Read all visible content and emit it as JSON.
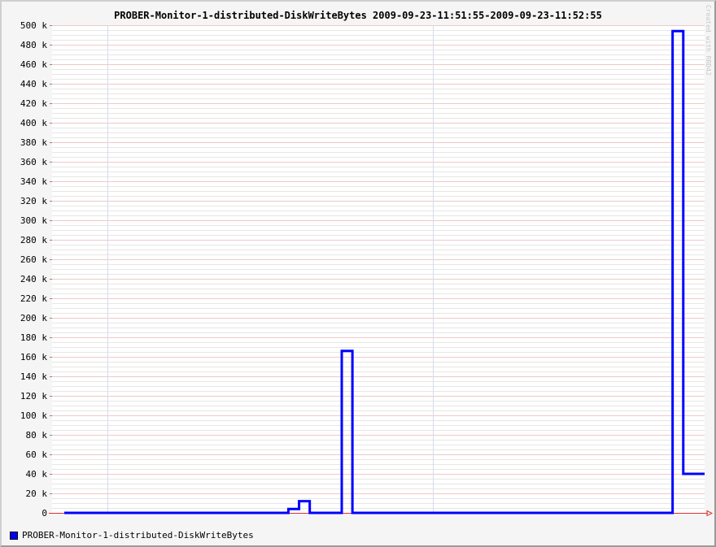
{
  "chart_data": {
    "type": "line",
    "title": "PROBER-Monitor-1-distributed-DiskWriteBytes 2009-09-23-11:51:55-2009-09-23-11:52:55",
    "xlabel": "",
    "ylabel": "",
    "watermark": "Created with RRD4J",
    "ylim": [
      0,
      500000
    ],
    "y_major_step": 20000,
    "y_minor_step": 5000,
    "yticks": [
      "0",
      "20 k",
      "40 k",
      "60 k",
      "80 k",
      "100 k",
      "120 k",
      "140 k",
      "160 k",
      "180 k",
      "200 k",
      "220 k",
      "240 k",
      "260 k",
      "280 k",
      "300 k",
      "320 k",
      "340 k",
      "360 k",
      "380 k",
      "400 k",
      "420 k",
      "440 k",
      "460 k",
      "480 k",
      "500 k"
    ],
    "step": true,
    "series": [
      {
        "name": "PROBER-Monitor-1-distributed-DiskWriteBytes",
        "color": "#0000ff",
        "x": [
          1,
          2,
          3,
          4,
          5,
          6,
          7,
          8,
          9,
          10,
          11,
          12,
          13,
          14,
          15,
          16,
          17,
          18,
          19,
          20,
          21,
          22,
          23,
          24,
          25,
          26,
          27,
          28,
          29,
          30,
          31,
          32,
          33,
          34,
          35,
          36,
          37,
          38,
          39,
          40,
          41,
          42,
          43,
          44,
          45,
          46,
          47,
          48,
          49,
          50,
          51,
          52,
          53,
          54,
          55,
          56,
          57,
          58,
          59,
          60
        ],
        "values": [
          0,
          0,
          0,
          0,
          0,
          0,
          0,
          0,
          0,
          0,
          0,
          0,
          0,
          0,
          0,
          0,
          0,
          0,
          0,
          0,
          0,
          4000,
          12000,
          0,
          0,
          0,
          166000,
          0,
          0,
          0,
          0,
          0,
          0,
          0,
          0,
          0,
          0,
          0,
          0,
          0,
          0,
          0,
          0,
          0,
          0,
          0,
          0,
          0,
          0,
          0,
          0,
          0,
          0,
          0,
          0,
          0,
          0,
          494000,
          40000,
          40000
        ],
        "xlim": [
          0,
          60
        ]
      }
    ],
    "grid": true,
    "legend_position": "bottom-left"
  },
  "legend": {
    "label": "PROBER-Monitor-1-distributed-DiskWriteBytes",
    "color": "#0000ff"
  }
}
